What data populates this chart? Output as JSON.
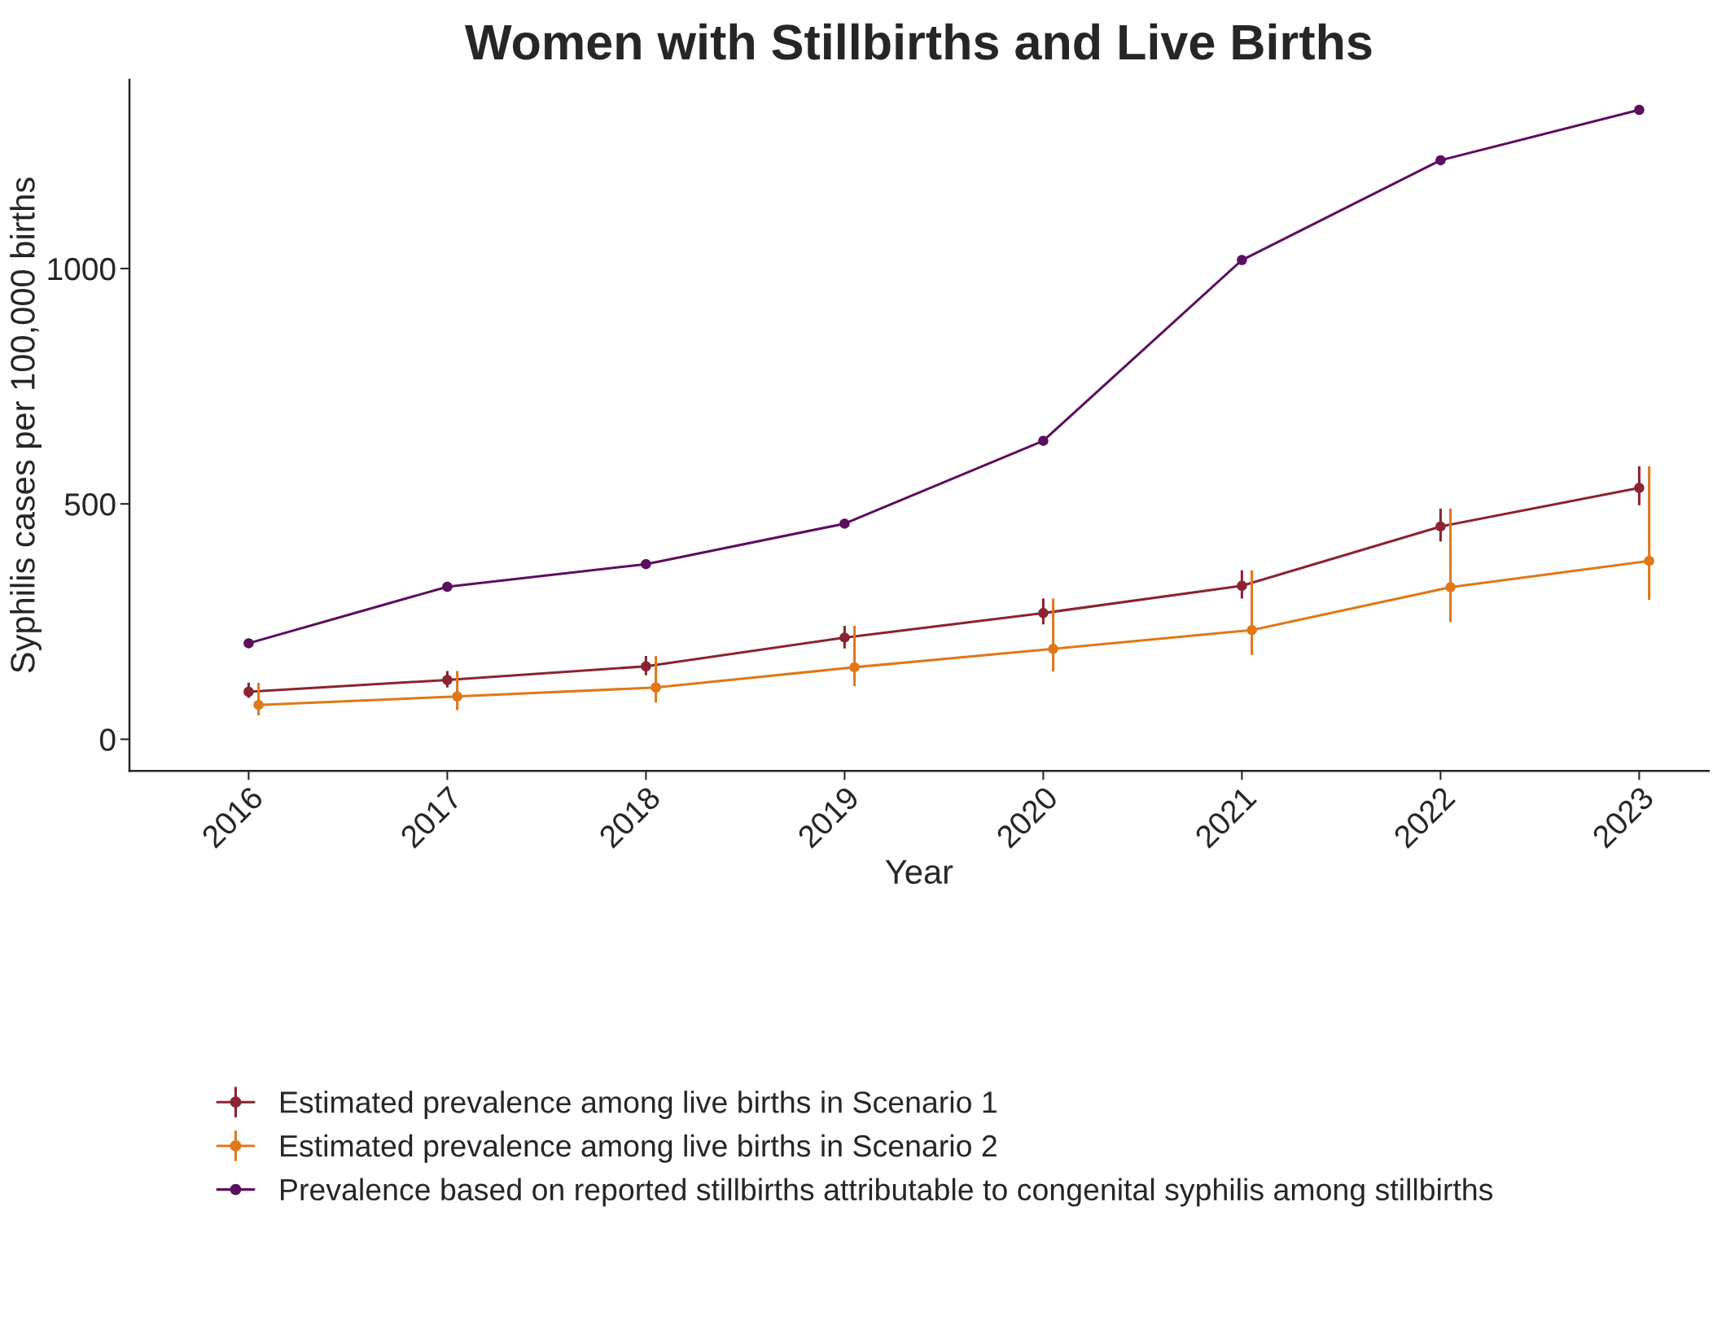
{
  "chart_data": {
    "type": "line",
    "title": "Women with Stillbirths and Live Births",
    "xlabel": "Year",
    "ylabel": "Syphilis cases per 100,000 births",
    "xlim": [
      2015.4,
      2023.35
    ],
    "xticks": [
      2016,
      2017,
      2018,
      2019,
      2020,
      2021,
      2022,
      2023
    ],
    "ylim": [
      -67,
      1401
    ],
    "yticks": [
      0,
      500,
      1000
    ],
    "grid": false,
    "legend": "bottom",
    "marker": "circle",
    "line_style": "solid",
    "series": [
      {
        "name": "Estimated prevalence among live births in Scenario 1",
        "color": "#8b2332",
        "x": [
          2016,
          2017,
          2018,
          2019,
          2020,
          2021,
          2022,
          2023
        ],
        "values": [
          101,
          126,
          155,
          216,
          268,
          326,
          452,
          534
        ],
        "errors": [
          [
            88,
            120
          ],
          [
            110,
            145
          ],
          [
            136,
            177
          ],
          [
            193,
            241
          ],
          [
            244,
            299
          ],
          [
            299,
            359
          ],
          [
            420,
            490
          ],
          [
            497,
            580
          ]
        ]
      },
      {
        "name": "Estimated prevalence among live births in Scenario 2",
        "color": "#e07818",
        "x": [
          2016.05,
          2017.05,
          2018.05,
          2019.05,
          2020.05,
          2021.05,
          2022.05,
          2023.05
        ],
        "values": [
          73,
          91,
          110,
          153,
          192,
          232,
          323,
          379
        ],
        "errors": [
          [
            51,
            120
          ],
          [
            62,
            145
          ],
          [
            78,
            177
          ],
          [
            113,
            241
          ],
          [
            144,
            299
          ],
          [
            179,
            359
          ],
          [
            249,
            490
          ],
          [
            296,
            580
          ]
        ]
      },
      {
        "name": "Prevalence based on reported stillbirths attributable to congenital syphilis among stillbirths",
        "color": "#5c0f5e",
        "x": [
          2016,
          2017,
          2018,
          2019,
          2020,
          2021,
          2022,
          2023
        ],
        "values": [
          204,
          324,
          372,
          458,
          634,
          1018,
          1230,
          1337
        ]
      }
    ]
  }
}
